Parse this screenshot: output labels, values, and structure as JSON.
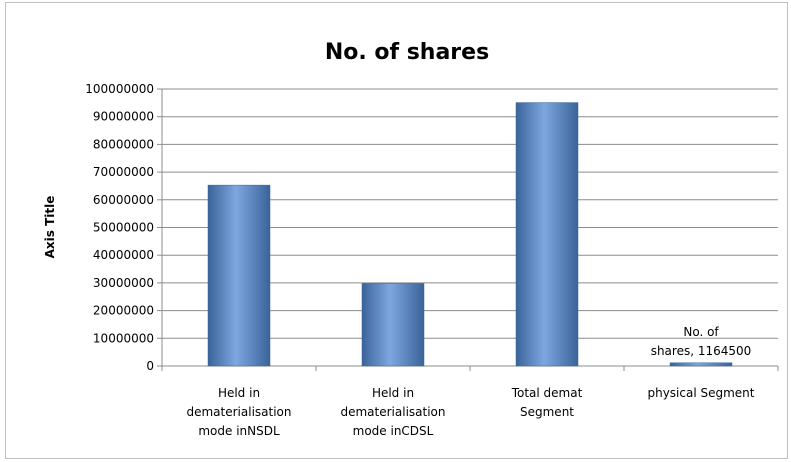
{
  "chart_data": {
    "type": "bar",
    "title": "No. of shares",
    "xlabel": "",
    "ylabel": "Axis Title",
    "ylim": [
      0,
      100000000
    ],
    "yticks": [
      0,
      10000000,
      20000000,
      30000000,
      40000000,
      50000000,
      60000000,
      70000000,
      80000000,
      90000000,
      100000000
    ],
    "grid": true,
    "legend": "none",
    "categories": [
      "Held in dematerialisation mode inNSDL",
      "Held in dematerialisation mode inCDSL",
      "Total demat Segment",
      "physical Segment"
    ],
    "category_lines": [
      [
        "Held in",
        "dematerialisation",
        "mode inNSDL"
      ],
      [
        "Held in",
        "dematerialisation",
        "mode inCDSL"
      ],
      [
        "Total demat",
        "Segment"
      ],
      [
        "physical Segment"
      ]
    ],
    "series": [
      {
        "values": [
          65300000,
          29800000,
          95100000,
          1164500
        ]
      }
    ],
    "data_labels": [
      {
        "category_index": 3,
        "lines": [
          "No. of",
          "shares, 1164500"
        ]
      }
    ],
    "colors": {
      "bar": "#4f81bd",
      "bar_light": "#7ea6e0",
      "bar_dark": "#3a6499",
      "grid": "#8c8c8c"
    }
  }
}
